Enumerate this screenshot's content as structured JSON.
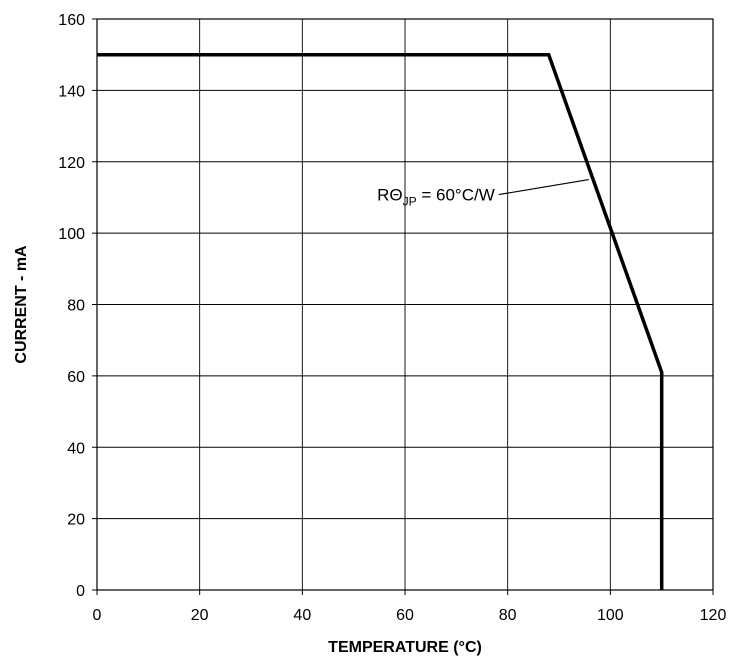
{
  "chart_data": {
    "type": "line",
    "title": "",
    "xlabel": "TEMPERATURE (°C)",
    "ylabel": "CURRENT - mA",
    "xlim": [
      0,
      120
    ],
    "ylim": [
      0,
      160
    ],
    "x_ticks": [
      0,
      20,
      40,
      60,
      80,
      100,
      120
    ],
    "y_ticks": [
      0,
      20,
      40,
      60,
      80,
      100,
      120,
      140,
      160
    ],
    "x_tick_labels": [
      "0",
      "20",
      "40",
      "60",
      "80",
      "100",
      "120"
    ],
    "y_tick_labels": [
      "0",
      "20",
      "40",
      "60",
      "80",
      "100",
      "120",
      "140",
      "160"
    ],
    "grid": true,
    "legend": "none",
    "series": [
      {
        "color": "#000000",
        "points": [
          {
            "x": 0,
            "y": 150
          },
          {
            "x": 88,
            "y": 150
          },
          {
            "x": 110,
            "y": 61
          },
          {
            "x": 110,
            "y": 0
          }
        ]
      }
    ],
    "annotations": [
      {
        "main": "RΘ",
        "subscript": "JP",
        "suffix": " = 60°C/W",
        "target": {
          "x": 95.8,
          "y": 115
        }
      }
    ]
  }
}
